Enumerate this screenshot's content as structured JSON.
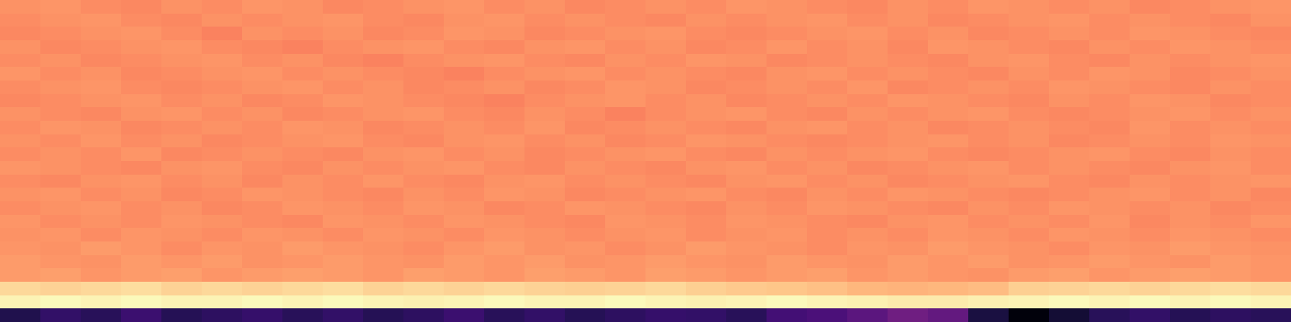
{
  "chart_data": {
    "type": "heatmap",
    "tick_labels": false,
    "clim": [
      0,
      1
    ],
    "cells": [
      [
        0.77,
        0.78,
        0.76,
        0.75,
        0.77,
        0.76,
        0.78,
        0.77,
        0.75,
        0.76,
        0.77,
        0.78,
        0.76,
        0.77,
        0.75,
        0.76,
        0.77,
        0.76,
        0.78,
        0.77,
        0.76,
        0.75,
        0.77,
        0.76,
        0.78,
        0.77,
        0.76,
        0.77,
        0.75,
        0.76,
        0.77,
        0.78
      ],
      [
        0.76,
        0.77,
        0.78,
        0.76,
        0.75,
        0.77,
        0.76,
        0.77,
        0.78,
        0.76,
        0.75,
        0.77,
        0.78,
        0.76,
        0.77,
        0.76,
        0.75,
        0.77,
        0.76,
        0.77,
        0.78,
        0.76,
        0.77,
        0.75,
        0.76,
        0.77,
        0.78,
        0.76,
        0.77,
        0.76,
        0.75,
        0.77
      ],
      [
        0.75,
        0.76,
        0.77,
        0.78,
        0.76,
        0.74,
        0.77,
        0.76,
        0.77,
        0.75,
        0.76,
        0.78,
        0.77,
        0.75,
        0.76,
        0.77,
        0.78,
        0.76,
        0.75,
        0.76,
        0.77,
        0.78,
        0.76,
        0.77,
        0.75,
        0.76,
        0.77,
        0.76,
        0.78,
        0.77,
        0.76,
        0.75
      ],
      [
        0.77,
        0.75,
        0.76,
        0.77,
        0.78,
        0.76,
        0.75,
        0.74,
        0.76,
        0.77,
        0.78,
        0.76,
        0.75,
        0.77,
        0.78,
        0.76,
        0.77,
        0.75,
        0.76,
        0.78,
        0.76,
        0.77,
        0.75,
        0.78,
        0.77,
        0.76,
        0.75,
        0.77,
        0.76,
        0.78,
        0.77,
        0.76
      ],
      [
        0.76,
        0.77,
        0.75,
        0.76,
        0.77,
        0.78,
        0.76,
        0.77,
        0.75,
        0.74,
        0.76,
        0.77,
        0.78,
        0.76,
        0.75,
        0.77,
        0.76,
        0.78,
        0.77,
        0.75,
        0.76,
        0.77,
        0.76,
        0.75,
        0.77,
        0.78,
        0.76,
        0.75,
        0.77,
        0.76,
        0.77,
        0.78
      ],
      [
        0.78,
        0.76,
        0.77,
        0.75,
        0.76,
        0.77,
        0.78,
        0.76,
        0.77,
        0.76,
        0.75,
        0.74,
        0.76,
        0.77,
        0.78,
        0.76,
        0.77,
        0.76,
        0.75,
        0.77,
        0.78,
        0.76,
        0.77,
        0.76,
        0.75,
        0.77,
        0.76,
        0.78,
        0.77,
        0.75,
        0.76,
        0.77
      ],
      [
        0.76,
        0.77,
        0.78,
        0.76,
        0.75,
        0.76,
        0.77,
        0.78,
        0.76,
        0.77,
        0.75,
        0.76,
        0.77,
        0.75,
        0.76,
        0.78,
        0.77,
        0.75,
        0.76,
        0.77,
        0.76,
        0.78,
        0.75,
        0.76,
        0.77,
        0.76,
        0.78,
        0.77,
        0.76,
        0.75,
        0.77,
        0.76
      ],
      [
        0.75,
        0.76,
        0.77,
        0.78,
        0.76,
        0.77,
        0.75,
        0.76,
        0.78,
        0.77,
        0.76,
        0.75,
        0.74,
        0.76,
        0.77,
        0.78,
        0.76,
        0.77,
        0.75,
        0.76,
        0.77,
        0.76,
        0.78,
        0.77,
        0.76,
        0.75,
        0.77,
        0.76,
        0.78,
        0.77,
        0.75,
        0.76
      ],
      [
        0.77,
        0.76,
        0.75,
        0.77,
        0.78,
        0.76,
        0.77,
        0.75,
        0.76,
        0.77,
        0.78,
        0.76,
        0.75,
        0.77,
        0.76,
        0.74,
        0.76,
        0.77,
        0.78,
        0.76,
        0.75,
        0.77,
        0.76,
        0.77,
        0.78,
        0.76,
        0.75,
        0.76,
        0.77,
        0.78,
        0.76,
        0.77
      ],
      [
        0.76,
        0.78,
        0.77,
        0.75,
        0.76,
        0.77,
        0.76,
        0.78,
        0.77,
        0.75,
        0.76,
        0.77,
        0.76,
        0.78,
        0.75,
        0.76,
        0.77,
        0.76,
        0.75,
        0.77,
        0.78,
        0.76,
        0.77,
        0.75,
        0.76,
        0.77,
        0.76,
        0.75,
        0.78,
        0.76,
        0.77,
        0.76
      ],
      [
        0.77,
        0.76,
        0.78,
        0.76,
        0.77,
        0.75,
        0.76,
        0.77,
        0.78,
        0.76,
        0.75,
        0.77,
        0.78,
        0.76,
        0.77,
        0.75,
        0.76,
        0.78,
        0.77,
        0.76,
        0.75,
        0.76,
        0.77,
        0.78,
        0.76,
        0.77,
        0.75,
        0.76,
        0.77,
        0.76,
        0.78,
        0.77
      ],
      [
        0.76,
        0.77,
        0.76,
        0.78,
        0.75,
        0.76,
        0.77,
        0.76,
        0.75,
        0.77,
        0.78,
        0.76,
        0.77,
        0.75,
        0.76,
        0.77,
        0.78,
        0.76,
        0.75,
        0.77,
        0.76,
        0.77,
        0.78,
        0.76,
        0.75,
        0.76,
        0.77,
        0.78,
        0.76,
        0.75,
        0.77,
        0.76
      ],
      [
        0.78,
        0.77,
        0.76,
        0.75,
        0.77,
        0.78,
        0.76,
        0.75,
        0.77,
        0.76,
        0.77,
        0.78,
        0.76,
        0.75,
        0.77,
        0.76,
        0.75,
        0.77,
        0.78,
        0.76,
        0.77,
        0.75,
        0.76,
        0.77,
        0.78,
        0.76,
        0.77,
        0.76,
        0.75,
        0.77,
        0.78,
        0.76
      ],
      [
        0.76,
        0.75,
        0.77,
        0.78,
        0.76,
        0.77,
        0.75,
        0.77,
        0.76,
        0.78,
        0.76,
        0.75,
        0.77,
        0.78,
        0.76,
        0.77,
        0.76,
        0.75,
        0.77,
        0.78,
        0.76,
        0.77,
        0.75,
        0.76,
        0.77,
        0.78,
        0.76,
        0.75,
        0.77,
        0.76,
        0.77,
        0.78
      ],
      [
        0.77,
        0.78,
        0.76,
        0.77,
        0.75,
        0.76,
        0.78,
        0.77,
        0.76,
        0.75,
        0.77,
        0.76,
        0.78,
        0.77,
        0.75,
        0.76,
        0.77,
        0.78,
        0.76,
        0.75,
        0.77,
        0.76,
        0.78,
        0.77,
        0.76,
        0.75,
        0.76,
        0.77,
        0.78,
        0.76,
        0.77,
        0.75
      ],
      [
        0.76,
        0.77,
        0.78,
        0.76,
        0.77,
        0.75,
        0.76,
        0.78,
        0.77,
        0.76,
        0.78,
        0.77,
        0.75,
        0.76,
        0.78,
        0.77,
        0.76,
        0.75,
        0.77,
        0.76,
        0.78,
        0.77,
        0.76,
        0.75,
        0.77,
        0.76,
        0.78,
        0.77,
        0.76,
        0.77,
        0.75,
        0.76
      ],
      [
        0.78,
        0.76,
        0.77,
        0.76,
        0.78,
        0.77,
        0.76,
        0.75,
        0.78,
        0.77,
        0.76,
        0.78,
        0.77,
        0.76,
        0.75,
        0.78,
        0.77,
        0.76,
        0.78,
        0.77,
        0.76,
        0.75,
        0.77,
        0.78,
        0.76,
        0.77,
        0.76,
        0.78,
        0.75,
        0.77,
        0.76,
        0.78
      ],
      [
        0.77,
        0.78,
        0.76,
        0.78,
        0.77,
        0.76,
        0.78,
        0.77,
        0.76,
        0.78,
        0.77,
        0.76,
        0.78,
        0.77,
        0.76,
        0.77,
        0.78,
        0.76,
        0.77,
        0.78,
        0.76,
        0.77,
        0.76,
        0.78,
        0.77,
        0.76,
        0.78,
        0.77,
        0.76,
        0.78,
        0.77,
        0.76
      ],
      [
        0.78,
        0.77,
        0.79,
        0.78,
        0.76,
        0.78,
        0.77,
        0.79,
        0.78,
        0.77,
        0.76,
        0.78,
        0.79,
        0.77,
        0.78,
        0.76,
        0.77,
        0.79,
        0.78,
        0.77,
        0.76,
        0.78,
        0.77,
        0.79,
        0.78,
        0.77,
        0.76,
        0.78,
        0.77,
        0.79,
        0.78,
        0.77
      ],
      [
        0.79,
        0.78,
        0.77,
        0.79,
        0.78,
        0.79,
        0.77,
        0.78,
        0.79,
        0.78,
        0.77,
        0.79,
        0.78,
        0.79,
        0.77,
        0.78,
        0.79,
        0.78,
        0.77,
        0.79,
        0.78,
        0.77,
        0.79,
        0.78,
        0.79,
        0.77,
        0.78,
        0.79,
        0.78,
        0.77,
        0.79,
        0.78
      ],
      [
        0.79,
        0.8,
        0.78,
        0.79,
        0.8,
        0.78,
        0.79,
        0.8,
        0.79,
        0.78,
        0.8,
        0.79,
        0.78,
        0.8,
        0.79,
        0.78,
        0.8,
        0.79,
        0.78,
        0.79,
        0.8,
        0.78,
        0.79,
        0.78,
        0.77,
        0.79,
        0.8,
        0.78,
        0.79,
        0.8,
        0.79,
        0.78
      ],
      [
        0.92,
        0.91,
        0.92,
        0.93,
        0.91,
        0.92,
        0.91,
        0.92,
        0.93,
        0.91,
        0.92,
        0.91,
        0.92,
        0.91,
        0.9,
        0.91,
        0.92,
        0.9,
        0.89,
        0.88,
        0.87,
        0.85,
        0.84,
        0.85,
        0.86,
        0.9,
        0.91,
        0.92,
        0.91,
        0.92,
        0.93,
        0.92
      ],
      [
        0.98,
        0.99,
        0.98,
        0.99,
        0.98,
        0.98,
        0.99,
        0.98,
        0.99,
        0.98,
        0.97,
        0.98,
        0.99,
        0.98,
        0.98,
        0.99,
        0.98,
        0.97,
        0.98,
        0.99,
        0.98,
        0.97,
        0.96,
        0.96,
        0.97,
        0.98,
        0.99,
        0.98,
        0.99,
        0.98,
        0.99,
        0.98
      ],
      [
        0.14,
        0.18,
        0.16,
        0.2,
        0.15,
        0.17,
        0.19,
        0.16,
        0.18,
        0.15,
        0.17,
        0.2,
        0.16,
        0.18,
        0.15,
        0.17,
        0.19,
        0.18,
        0.16,
        0.22,
        0.24,
        0.28,
        0.33,
        0.3,
        0.12,
        0.02,
        0.1,
        0.16,
        0.18,
        0.15,
        0.17,
        0.16
      ]
    ]
  }
}
